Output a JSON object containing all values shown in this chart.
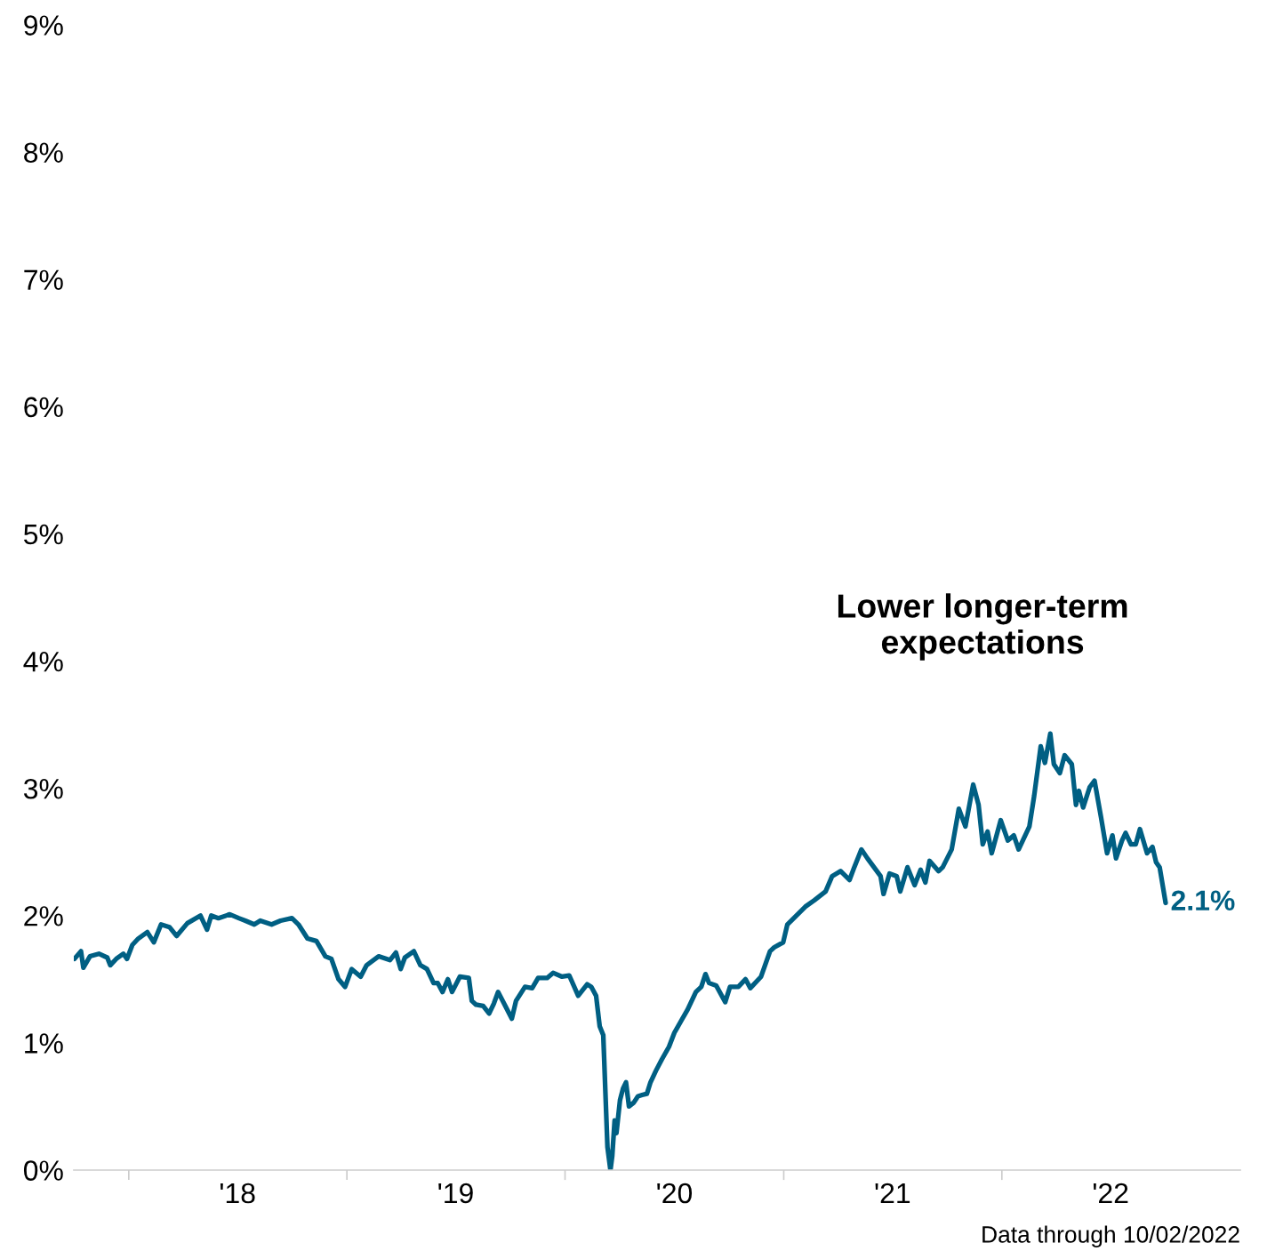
{
  "chart_data": {
    "type": "line",
    "xlim": [
      "2017-10-01",
      "2023-02-04"
    ],
    "ylim": [
      0,
      9
    ],
    "xticks": [
      {
        "value": "2018-01-01",
        "label": null
      },
      {
        "value": "2019-01-01",
        "label": null
      },
      {
        "value": "2020-01-01",
        "label": null
      },
      {
        "value": "2021-01-01",
        "label": null
      },
      {
        "value": "2022-01-01",
        "label": null
      },
      {
        "value": "2018-07-02",
        "label": "'18"
      },
      {
        "value": "2019-07-02",
        "label": "'19"
      },
      {
        "value": "2020-07-02",
        "label": "'20"
      },
      {
        "value": "2021-07-02",
        "label": "'21"
      },
      {
        "value": "2022-07-02",
        "label": "'22"
      }
    ],
    "yticks": [
      {
        "value": 0,
        "label": "0%"
      },
      {
        "value": 1,
        "label": "1%"
      },
      {
        "value": 2,
        "label": "2%"
      },
      {
        "value": 3,
        "label": "3%"
      },
      {
        "value": 4,
        "label": "4%"
      },
      {
        "value": 5,
        "label": "5%"
      },
      {
        "value": 6,
        "label": "6%"
      },
      {
        "value": 7,
        "label": "7%"
      },
      {
        "value": 8,
        "label": "8%"
      },
      {
        "value": 9,
        "label": "9%"
      }
    ],
    "grid": false,
    "legend": false,
    "marker": "none",
    "line_style": "solid",
    "annotations": [
      "Lower longer-term\nexpectations",
      "Data through 10/02/2022",
      {
        "text": "2.1%",
        "x": "2022-10-02",
        "y": 2.1
      }
    ],
    "series": [
      {
        "color": "#005f83",
        "x": [
          "2017-10-02",
          "2017-10-13",
          "2017-10-17",
          "2017-10-28",
          "2017-11-12",
          "2017-11-26",
          "2017-12-01",
          "2017-12-11",
          "2017-12-23",
          "2017-12-29",
          "2018-01-07",
          "2018-01-17",
          "2018-02-01",
          "2018-02-12",
          "2018-02-24",
          "2018-03-10",
          "2018-03-22",
          "2018-04-09",
          "2018-05-01",
          "2018-05-12",
          "2018-05-19",
          "2018-05-31",
          "2018-06-19",
          "2018-07-04",
          "2018-07-15",
          "2018-07-30",
          "2018-08-09",
          "2018-08-28",
          "2018-09-12",
          "2018-10-01",
          "2018-10-12",
          "2018-10-27",
          "2018-11-11",
          "2018-11-26",
          "2018-12-06",
          "2018-12-18",
          "2018-12-29",
          "2019-01-09",
          "2019-01-24",
          "2019-02-03",
          "2019-02-23",
          "2019-03-14",
          "2019-03-24",
          "2019-04-01",
          "2019-04-08",
          "2019-04-23",
          "2019-05-04",
          "2019-05-15",
          "2019-05-26",
          "2019-06-02",
          "2019-06-10",
          "2019-06-19",
          "2019-06-26",
          "2019-07-09",
          "2019-07-24",
          "2019-07-29",
          "2019-08-05",
          "2019-08-17",
          "2019-08-27",
          "2019-09-04",
          "2019-09-11",
          "2019-09-22",
          "2019-10-04",
          "2019-10-11",
          "2019-10-26",
          "2019-11-07",
          "2019-11-17",
          "2019-12-02",
          "2019-12-12",
          "2019-12-27",
          "2020-01-08",
          "2020-01-23",
          "2020-02-07",
          "2020-02-14",
          "2020-02-22",
          "2020-02-28",
          "2020-03-05",
          "2020-03-12",
          "2020-03-17",
          "2020-03-20",
          "2020-03-24",
          "2020-03-27",
          "2020-04-02",
          "2020-04-07",
          "2020-04-12",
          "2020-04-17",
          "2020-04-25",
          "2020-05-02",
          "2020-05-09",
          "2020-05-17",
          "2020-05-23",
          "2020-06-01",
          "2020-06-11",
          "2020-06-23",
          "2020-07-02",
          "2020-07-13",
          "2020-07-24",
          "2020-08-07",
          "2020-08-16",
          "2020-08-23",
          "2020-08-29",
          "2020-09-10",
          "2020-09-25",
          "2020-10-03",
          "2020-10-17",
          "2020-10-29",
          "2020-11-06",
          "2020-11-24",
          "2020-12-09",
          "2020-12-16",
          "2020-12-31",
          "2021-01-07",
          "2021-01-22",
          "2021-02-06",
          "2021-02-21",
          "2021-03-12",
          "2021-03-23",
          "2021-04-06",
          "2021-04-21",
          "2021-04-29",
          "2021-05-11",
          "2021-05-21",
          "2021-06-12",
          "2021-06-17",
          "2021-06-27",
          "2021-07-09",
          "2021-07-15",
          "2021-07-27",
          "2021-08-08",
          "2021-08-18",
          "2021-08-26",
          "2021-09-02",
          "2021-09-17",
          "2021-09-24",
          "2021-10-09",
          "2021-10-21",
          "2021-11-01",
          "2021-11-14",
          "2021-11-23",
          "2021-11-30",
          "2021-12-08",
          "2021-12-15",
          "2021-12-30",
          "2022-01-11",
          "2022-01-21",
          "2022-01-29",
          "2022-02-05",
          "2022-02-16",
          "2022-02-24",
          "2022-03-07",
          "2022-03-14",
          "2022-03-23",
          "2022-03-29",
          "2022-04-08",
          "2022-04-16",
          "2022-04-28",
          "2022-05-05",
          "2022-05-10",
          "2022-05-17",
          "2022-05-28",
          "2022-06-05",
          "2022-06-16",
          "2022-06-26",
          "2022-07-05",
          "2022-07-11",
          "2022-07-21",
          "2022-07-27",
          "2022-08-05",
          "2022-08-13",
          "2022-08-20",
          "2022-09-01",
          "2022-09-10",
          "2022-09-16",
          "2022-09-22",
          "2022-10-02"
        ],
        "values": [
          1.66,
          1.72,
          1.59,
          1.68,
          1.7,
          1.67,
          1.61,
          1.66,
          1.7,
          1.66,
          1.77,
          1.82,
          1.87,
          1.79,
          1.93,
          1.91,
          1.84,
          1.94,
          2.0,
          1.89,
          2.0,
          1.98,
          2.01,
          1.98,
          1.96,
          1.93,
          1.96,
          1.93,
          1.96,
          1.98,
          1.93,
          1.82,
          1.8,
          1.68,
          1.66,
          1.5,
          1.44,
          1.58,
          1.52,
          1.61,
          1.68,
          1.65,
          1.71,
          1.58,
          1.67,
          1.72,
          1.61,
          1.58,
          1.47,
          1.47,
          1.4,
          1.5,
          1.4,
          1.52,
          1.51,
          1.33,
          1.3,
          1.29,
          1.23,
          1.31,
          1.4,
          1.3,
          1.19,
          1.33,
          1.44,
          1.43,
          1.51,
          1.51,
          1.55,
          1.52,
          1.53,
          1.37,
          1.46,
          1.44,
          1.37,
          1.13,
          1.06,
          0.18,
          0.0,
          0.11,
          0.39,
          0.29,
          0.55,
          0.64,
          0.69,
          0.5,
          0.53,
          0.58,
          0.59,
          0.6,
          0.69,
          0.78,
          0.87,
          0.97,
          1.08,
          1.17,
          1.26,
          1.4,
          1.44,
          1.54,
          1.47,
          1.45,
          1.32,
          1.44,
          1.44,
          1.5,
          1.43,
          1.52,
          1.72,
          1.75,
          1.79,
          1.93,
          2.0,
          2.07,
          2.12,
          2.19,
          2.31,
          2.35,
          2.28,
          2.38,
          2.52,
          2.45,
          2.31,
          2.17,
          2.33,
          2.31,
          2.19,
          2.38,
          2.24,
          2.36,
          2.26,
          2.43,
          2.35,
          2.38,
          2.52,
          2.84,
          2.7,
          3.03,
          2.87,
          2.56,
          2.66,
          2.49,
          2.75,
          2.59,
          2.63,
          2.52,
          2.59,
          2.7,
          2.94,
          3.33,
          3.2,
          3.43,
          3.19,
          3.12,
          3.26,
          3.19,
          2.87,
          2.98,
          2.85,
          3.01,
          3.06,
          2.77,
          2.49,
          2.63,
          2.45,
          2.59,
          2.65,
          2.56,
          2.56,
          2.68,
          2.49,
          2.54,
          2.42,
          2.38,
          2.1
        ]
      }
    ]
  }
}
